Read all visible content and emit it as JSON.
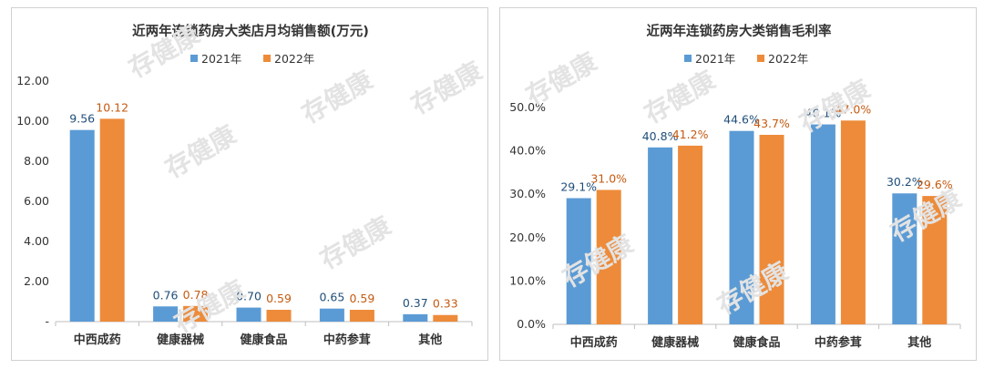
{
  "watermark": "存健康",
  "chart_data": [
    {
      "type": "bar",
      "title": "近两年连锁药房大类店月均销售额(万元)",
      "categories": [
        "中西成药",
        "健康器械",
        "健康食品",
        "中药参茸",
        "其他"
      ],
      "series": [
        {
          "name": "2021年",
          "values": [
            9.56,
            0.76,
            0.7,
            0.65,
            0.37
          ],
          "labels": [
            "9.56",
            "0.76",
            "0.70",
            "0.65",
            "0.37"
          ],
          "color": "#5b9bd5",
          "label_color": "#1f4e79"
        },
        {
          "name": "2022年",
          "values": [
            10.12,
            0.78,
            0.59,
            0.59,
            0.33
          ],
          "labels": [
            "10.12",
            "0.78",
            "0.59",
            "0.59",
            "0.33"
          ],
          "color": "#ed8b3a",
          "label_color": "#c55a11"
        }
      ],
      "ylim": [
        0,
        12
      ],
      "yticks": [
        0,
        2,
        4,
        6,
        8,
        10,
        12
      ],
      "ytick_labels": [
        "-",
        "2.00",
        "4.00",
        "6.00",
        "8.00",
        "10.00",
        "12.00"
      ],
      "legend_position": "top",
      "grid": false
    },
    {
      "type": "bar",
      "title": "近两年连锁药房大类销售毛利率",
      "categories": [
        "中西成药",
        "健康器械",
        "健康食品",
        "中药参茸",
        "其他"
      ],
      "series": [
        {
          "name": "2021年",
          "values": [
            29.1,
            40.8,
            44.6,
            46.1,
            30.2
          ],
          "labels": [
            "29.1%",
            "40.8%",
            "44.6%",
            "46.1%",
            "30.2%"
          ],
          "color": "#5b9bd5",
          "label_color": "#1f4e79"
        },
        {
          "name": "2022年",
          "values": [
            31.0,
            41.2,
            43.7,
            47.0,
            29.6
          ],
          "labels": [
            "31.0%",
            "41.2%",
            "43.7%",
            "47.0%",
            "29.6%"
          ],
          "color": "#ed8b3a",
          "label_color": "#c55a11"
        }
      ],
      "ylim": [
        0,
        50
      ],
      "yticks": [
        0,
        10,
        20,
        30,
        40,
        50
      ],
      "ytick_labels": [
        "0.0%",
        "10.0%",
        "20.0%",
        "30.0%",
        "40.0%",
        "50.0%"
      ],
      "legend_position": "top",
      "grid": false
    }
  ]
}
